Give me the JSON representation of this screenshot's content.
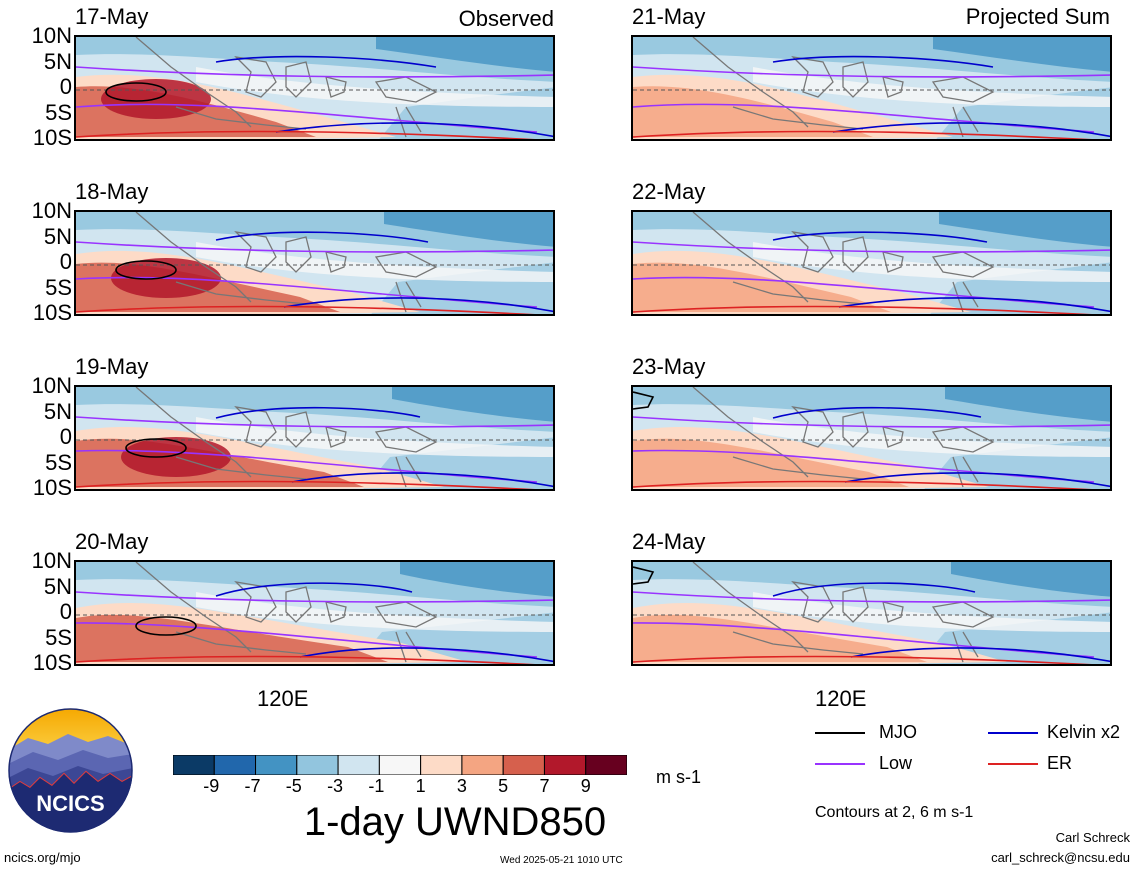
{
  "panels": {
    "observed": [
      {
        "date": "17-May"
      },
      {
        "date": "18-May"
      },
      {
        "date": "19-May"
      },
      {
        "date": "20-May"
      }
    ],
    "projected": [
      {
        "date": "21-May"
      },
      {
        "date": "22-May"
      },
      {
        "date": "23-May"
      },
      {
        "date": "24-May"
      }
    ],
    "observed_label": "Observed",
    "projected_label": "Projected Sum"
  },
  "axes": {
    "lat_ticks": [
      "10N",
      "5N",
      "0",
      "5S",
      "10S"
    ],
    "lon_label_left": "120E",
    "lon_label_right": "120E"
  },
  "colorbar": {
    "ticks": [
      "-9",
      "-7",
      "-5",
      "-3",
      "-1",
      "1",
      "3",
      "5",
      "7",
      "9"
    ],
    "colors": [
      "#0b3a66",
      "#2167ac",
      "#4393c3",
      "#92c5de",
      "#d1e5f0",
      "#f7f7f7",
      "#fddbc7",
      "#f4a582",
      "#d6604d",
      "#b2182b",
      "#67001f"
    ],
    "units": "m s-1",
    "title": "1-day UWND850"
  },
  "legend": {
    "items": [
      {
        "label": "MJO",
        "color": "#000000"
      },
      {
        "label": "Kelvin x2",
        "color": "#0000cc"
      },
      {
        "label": "Low",
        "color": "#9933ff"
      },
      {
        "label": "ER",
        "color": "#dd2222"
      }
    ],
    "contours_note": "Contours at 2, 6 m s-1"
  },
  "logo": {
    "text": "NCICS"
  },
  "footer": {
    "url": "ncics.org/mjo",
    "timestamp": "Wed 2025-05-21 1010 UTC",
    "author": "Carl Schreck",
    "email": "carl_schreck@ncsu.edu"
  }
}
